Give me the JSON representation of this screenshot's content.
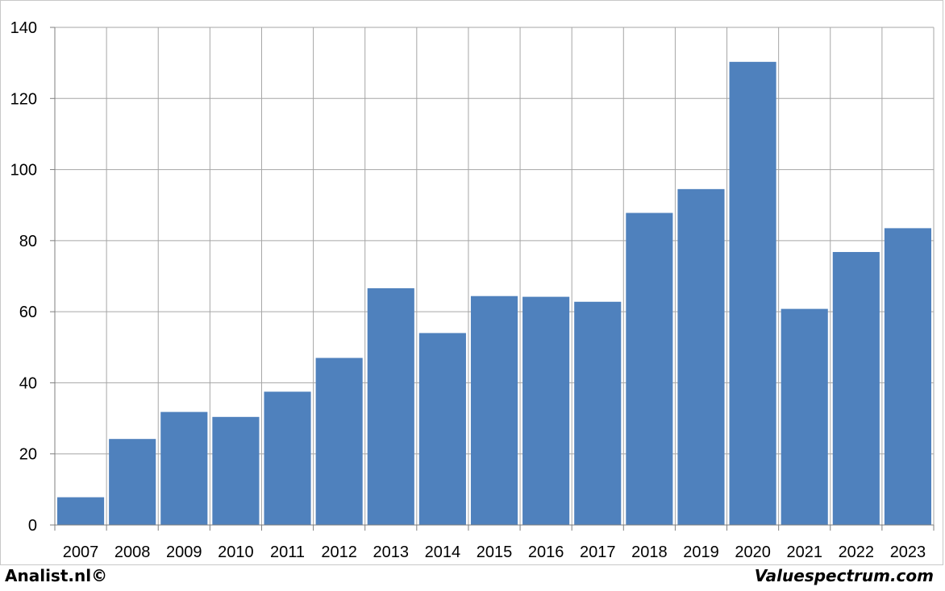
{
  "chart_data": {
    "type": "bar",
    "categories": [
      "2007",
      "2008",
      "2009",
      "2010",
      "2011",
      "2012",
      "2013",
      "2014",
      "2015",
      "2016",
      "2017",
      "2018",
      "2019",
      "2020",
      "2021",
      "2022",
      "2023"
    ],
    "values": [
      7.8,
      24.2,
      31.8,
      30.4,
      37.5,
      47.0,
      66.6,
      54.0,
      64.4,
      64.2,
      62.8,
      87.8,
      94.5,
      130.3,
      60.8,
      76.8,
      83.5
    ],
    "title": "",
    "xlabel": "",
    "ylabel": "",
    "ylim": [
      0,
      140
    ],
    "yticks": [
      0,
      20,
      40,
      60,
      80,
      100,
      120,
      140
    ],
    "grid": true,
    "bar_color": "#4f81bd",
    "grid_color": "#a6a6a6"
  },
  "footer": {
    "left": "Analist.nl©",
    "right": "Valuespectrum.com"
  }
}
